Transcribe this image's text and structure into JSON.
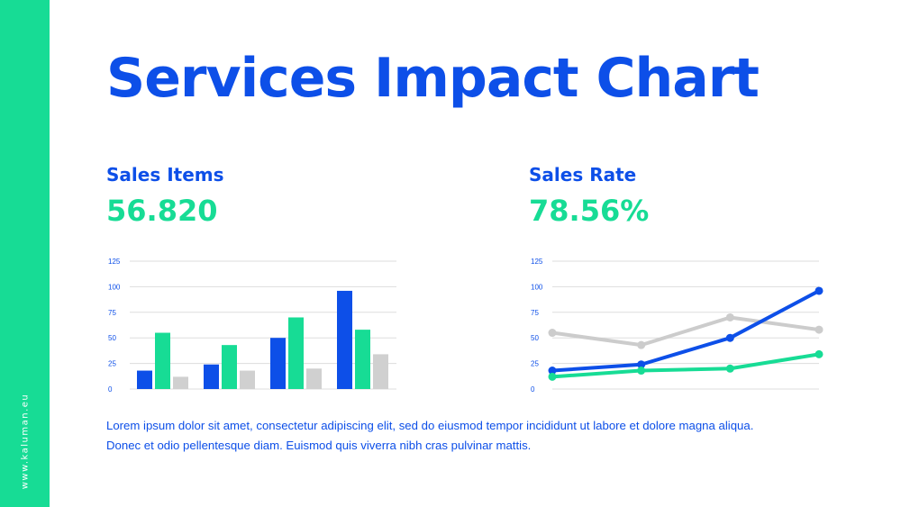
{
  "slide": {
    "title": "Services Impact Chart",
    "sidebar_text": "www.kaluman.eu"
  },
  "left_panel": {
    "label": "Sales Items",
    "metric": "56.820"
  },
  "right_panel": {
    "label": "Sales Rate",
    "metric": "78.56%"
  },
  "description": {
    "line1": "Lorem ipsum dolor sit amet, consectetur adipiscing elit, sed do eiusmod tempor incididunt ut labore et dolore magna aliqua.",
    "line2": "Donec et odio pellentesque diam. Euismod quis viverra nibh cras pulvinar mattis."
  },
  "colors": {
    "blue": "#0d4fe8",
    "green": "#17dc95",
    "gray": "#d0d0d0",
    "grid": "#dddddd",
    "sidebar": "#17dc95"
  },
  "chart_data": [
    {
      "type": "bar",
      "yticks": [
        0,
        25,
        50,
        75,
        100,
        125
      ],
      "ylim": [
        0,
        125
      ],
      "grid": true,
      "series": [
        {
          "color": "#0d4fe8",
          "values": [
            18,
            24,
            50,
            96
          ]
        },
        {
          "color": "#17dc95",
          "values": [
            55,
            43,
            70,
            58
          ]
        },
        {
          "color": "#d0d0d0",
          "values": [
            12,
            18,
            20,
            34
          ]
        }
      ]
    },
    {
      "type": "line",
      "yticks": [
        0,
        25,
        50,
        75,
        100,
        125
      ],
      "ylim": [
        0,
        125
      ],
      "grid": true,
      "series": [
        {
          "color": "#0d4fe8",
          "values": [
            18,
            24,
            50,
            96
          ]
        },
        {
          "color": "#17dc95",
          "values": [
            12,
            18,
            20,
            34
          ]
        },
        {
          "color": "#cccccc",
          "values": [
            55,
            43,
            70,
            58
          ]
        }
      ]
    }
  ]
}
